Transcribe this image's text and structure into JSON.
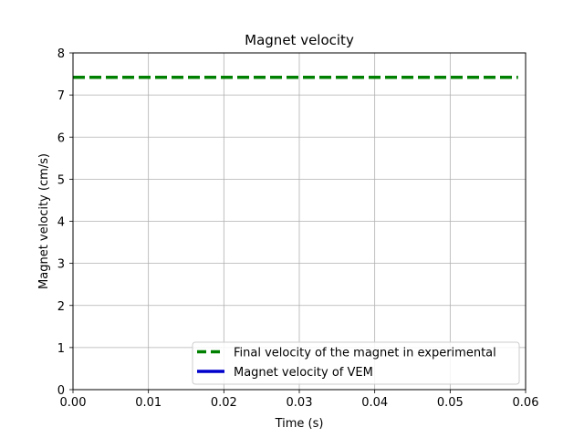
{
  "chart_data": {
    "type": "line",
    "title": "Magnet velocity",
    "xlabel": "Time (s)",
    "ylabel": "Magnet velocity (cm/s)",
    "xlim": [
      0.0,
      0.06
    ],
    "ylim": [
      0,
      8
    ],
    "xticks": [
      0.0,
      0.01,
      0.02,
      0.03,
      0.04,
      0.05,
      0.06
    ],
    "xtick_labels": [
      "0.00",
      "0.01",
      "0.02",
      "0.03",
      "0.04",
      "0.05",
      "0.06"
    ],
    "yticks": [
      0,
      1,
      2,
      3,
      4,
      5,
      6,
      7,
      8
    ],
    "ytick_labels": [
      "0",
      "1",
      "2",
      "3",
      "4",
      "5",
      "6",
      "7",
      "8"
    ],
    "grid": true,
    "legend_position": "lower-right",
    "series": [
      {
        "name": "Final velocity of the magnet in experimental",
        "color": "#008000",
        "style": "dashed",
        "x": [
          0.0,
          0.059
        ],
        "y": [
          7.42,
          7.42
        ]
      },
      {
        "name": "Magnet velocity of VEM",
        "color": "#0000cc",
        "style": "solid",
        "x": [],
        "y": []
      }
    ]
  }
}
